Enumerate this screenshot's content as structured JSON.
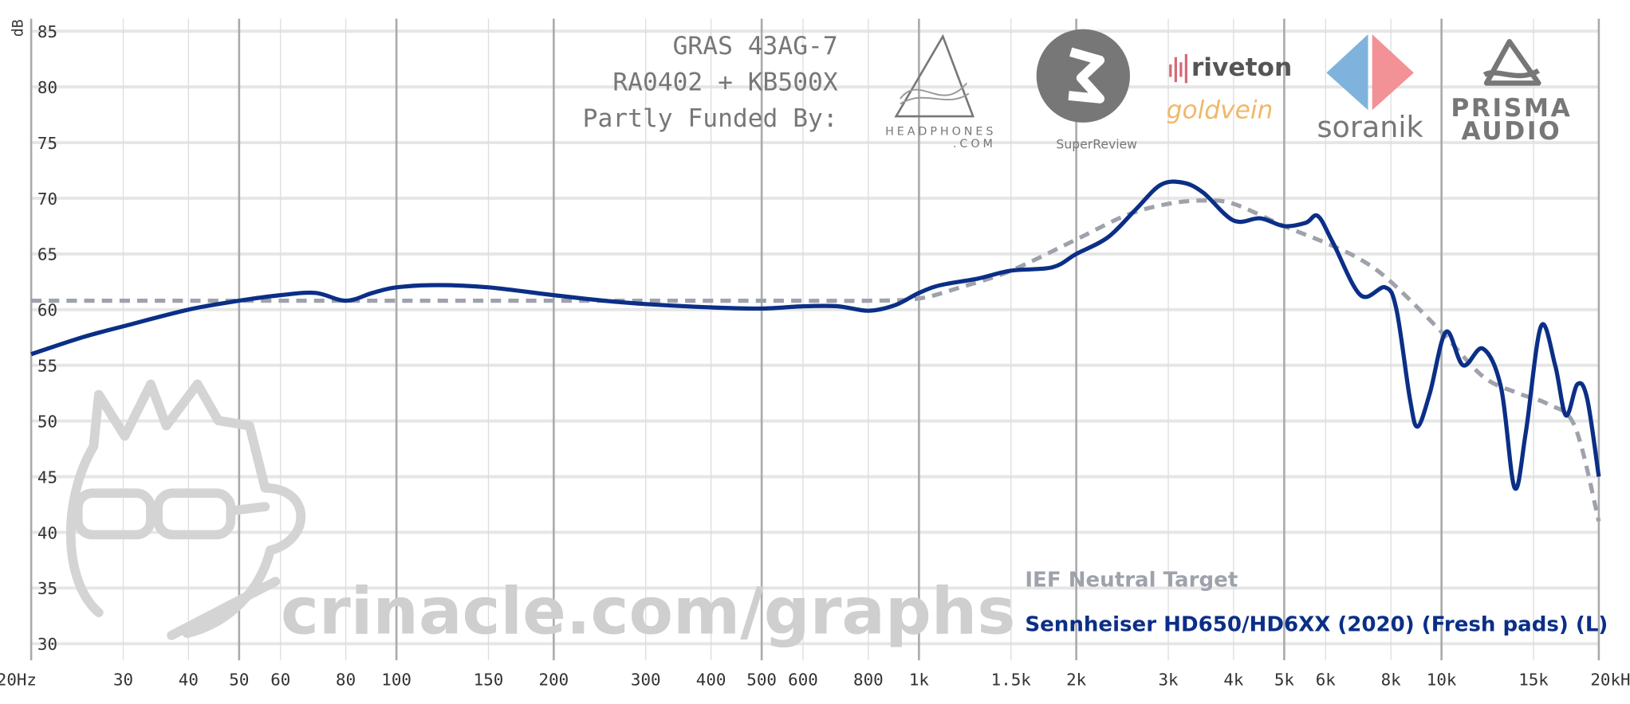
{
  "chart_data": {
    "type": "line",
    "ylabel": "dB",
    "header": [
      "GRAS 43AG-7",
      "RA0402 + KB500X",
      "Partly Funded By:"
    ],
    "sponsors": [
      "HEADPHONES",
      ".COM",
      "SuperReview",
      "riveton",
      "goldvein",
      "soranik",
      "PRISMA",
      "AUDIO"
    ],
    "watermark": "crinacle.com/graphs",
    "log_x": true,
    "grid": true,
    "legend": "lower right",
    "xlim": [
      20,
      20000
    ],
    "ylim": [
      30,
      85
    ],
    "xticks": [
      {
        "value": 20,
        "label": "20Hz"
      },
      30,
      40,
      50,
      60,
      80,
      100,
      150,
      200,
      300,
      400,
      500,
      600,
      800,
      {
        "value": 1000,
        "label": "1k"
      },
      {
        "value": 1500,
        "label": "1.5k"
      },
      {
        "value": 2000,
        "label": "2k"
      },
      {
        "value": 3000,
        "label": "3k"
      },
      {
        "value": 4000,
        "label": "4k"
      },
      {
        "value": 5000,
        "label": "5k"
      },
      {
        "value": 6000,
        "label": "6k"
      },
      {
        "value": 8000,
        "label": "8k"
      },
      {
        "value": 10000,
        "label": "10k"
      },
      {
        "value": 15000,
        "label": "15k"
      },
      {
        "value": 20000,
        "label": "20kHz"
      }
    ],
    "yticks": [
      30,
      35,
      40,
      45,
      50,
      55,
      60,
      65,
      70,
      75,
      80,
      85
    ],
    "series": [
      {
        "name": "IEF Neutral Target",
        "color": "#9ea2ab",
        "dashed": true,
        "x": [
          20,
          100,
          500,
          800,
          1000,
          1200,
          1500,
          2000,
          2500,
          3000,
          3500,
          4000,
          5000,
          6000,
          7000,
          8000,
          10000,
          12000,
          14000,
          16000,
          18000,
          20000
        ],
        "values": [
          60.8,
          60.8,
          60.8,
          60.8,
          61,
          62,
          63.5,
          66.3,
          68.5,
          69.5,
          69.8,
          69.5,
          67.5,
          66,
          64.5,
          62.5,
          58,
          54,
          52.5,
          51.5,
          49.5,
          41
        ]
      },
      {
        "name": "Sennheiser HD650/HD6XX (2020) (Fresh pads) (L)",
        "color": "#0b2f87",
        "dashed": false,
        "x": [
          20,
          25,
          30,
          40,
          50,
          60,
          70,
          80,
          90,
          100,
          120,
          150,
          200,
          250,
          300,
          400,
          500,
          600,
          700,
          800,
          900,
          1000,
          1100,
          1300,
          1500,
          1800,
          2000,
          2300,
          2600,
          2900,
          3200,
          3500,
          4000,
          4500,
          5000,
          5500,
          5800,
          6200,
          7000,
          7800,
          8200,
          8700,
          9000,
          9500,
          10200,
          11000,
          12000,
          13000,
          13800,
          14500,
          15500,
          16500,
          17300,
          18200,
          19000,
          20000
        ],
        "values": [
          56,
          57.5,
          58.5,
          60,
          60.8,
          61.3,
          61.5,
          60.8,
          61.5,
          62,
          62.2,
          62,
          61.3,
          60.8,
          60.5,
          60.2,
          60.1,
          60.3,
          60.3,
          59.9,
          60.4,
          61.5,
          62.2,
          62.8,
          63.5,
          63.8,
          65,
          66.5,
          69,
          71.2,
          71.4,
          70.5,
          68,
          68.2,
          67.5,
          67.8,
          68.4,
          66,
          61.3,
          62,
          60,
          52,
          49.5,
          52.5,
          58,
          55,
          56.5,
          53,
          44,
          49,
          58.5,
          55,
          50.5,
          53.3,
          52,
          45
        ]
      }
    ]
  }
}
